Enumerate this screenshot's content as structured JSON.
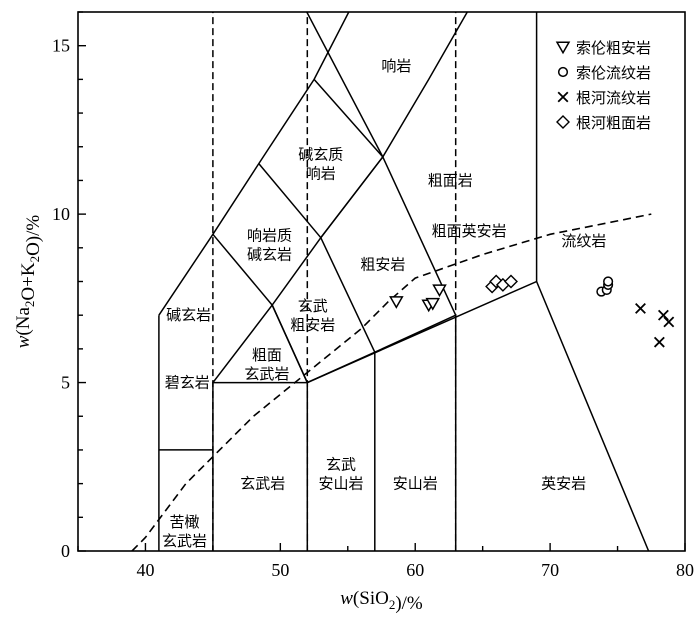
{
  "chart_data": {
    "type": "scatter",
    "title": "",
    "xlabel": "w(SiO2)/%",
    "ylabel": "w(Na2O+K2O)/%",
    "xlim": [
      35,
      80
    ],
    "ylim": [
      0,
      16
    ],
    "x_ticks": [
      "40",
      "50",
      "60",
      "70",
      "80"
    ],
    "y_ticks": [
      "0",
      "5",
      "10",
      "15"
    ],
    "grid": false,
    "legend_position": "top-right",
    "series": [
      {
        "name": "索伦粗安岩",
        "marker": "triangle-down",
        "points": [
          [
            58.6,
            7.4
          ],
          [
            61.0,
            7.3
          ],
          [
            61.3,
            7.35
          ],
          [
            61.8,
            7.75
          ]
        ]
      },
      {
        "name": "索伦流纹岩",
        "marker": "circle",
        "points": [
          [
            73.8,
            7.7
          ],
          [
            74.2,
            7.75
          ],
          [
            74.3,
            7.9
          ],
          [
            74.3,
            8.0
          ]
        ]
      },
      {
        "name": "根河流纹岩",
        "marker": "x",
        "points": [
          [
            76.7,
            7.2
          ],
          [
            78.1,
            6.2
          ],
          [
            78.4,
            7.0
          ],
          [
            78.8,
            6.8
          ]
        ]
      },
      {
        "name": "根河粗面岩",
        "marker": "diamond",
        "points": [
          [
            65.7,
            7.85
          ],
          [
            66.0,
            8.0
          ],
          [
            66.5,
            7.9
          ],
          [
            67.1,
            8.0
          ]
        ]
      }
    ],
    "field_labels": [
      {
        "text": [
          "响岩"
        ],
        "x": 58.6,
        "y": 14.4
      },
      {
        "text": [
          "碱玄质",
          "响岩"
        ],
        "x": 53.0,
        "y": 11.5
      },
      {
        "text": [
          "粗面岩"
        ],
        "x": 62.6,
        "y": 11.0
      },
      {
        "text": [
          "响岩质",
          "碱玄岩"
        ],
        "x": 49.2,
        "y": 9.1
      },
      {
        "text": [
          "粗面英安岩"
        ],
        "x": 64.0,
        "y": 9.5
      },
      {
        "text": [
          "流纹岩"
        ],
        "x": 72.5,
        "y": 9.2
      },
      {
        "text": [
          "粗安岩"
        ],
        "x": 57.6,
        "y": 8.5
      },
      {
        "text": [
          "碱玄岩"
        ],
        "x": 43.2,
        "y": 7.0
      },
      {
        "text": [
          "玄武",
          "粗安岩"
        ],
        "x": 52.4,
        "y": 7.0
      },
      {
        "text": [
          "碧玄岩"
        ],
        "x": 43.1,
        "y": 5.0
      },
      {
        "text": [
          "粗面",
          "玄武岩"
        ],
        "x": 49.0,
        "y": 5.55
      },
      {
        "text": [
          "玄武岩"
        ],
        "x": 48.7,
        "y": 2.0
      },
      {
        "text": [
          "玄武",
          "安山岩"
        ],
        "x": 54.5,
        "y": 2.3
      },
      {
        "text": [
          "安山岩"
        ],
        "x": 60.0,
        "y": 2.0
      },
      {
        "text": [
          "英安岩"
        ],
        "x": 71.0,
        "y": 2.0
      },
      {
        "text": [
          "苦橄",
          "玄武岩"
        ],
        "x": 42.9,
        "y": 0.6
      }
    ]
  }
}
